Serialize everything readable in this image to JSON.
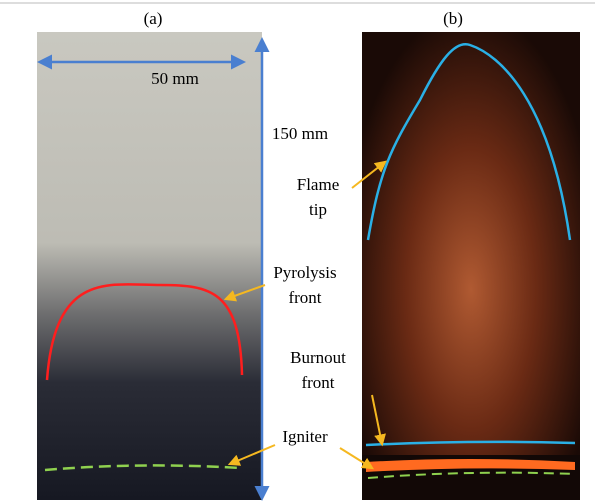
{
  "panels": [
    {
      "label": "(a)"
    },
    {
      "label": "(b)"
    }
  ],
  "dimensions": {
    "width": "50 mm",
    "height": "150 mm"
  },
  "annotations": [
    {
      "lines": [
        "Flame",
        "tip"
      ]
    },
    {
      "lines": [
        "Pyrolysis",
        "front"
      ]
    },
    {
      "lines": [
        "Burnout",
        "front"
      ]
    },
    {
      "lines": [
        "Igniter"
      ]
    }
  ]
}
